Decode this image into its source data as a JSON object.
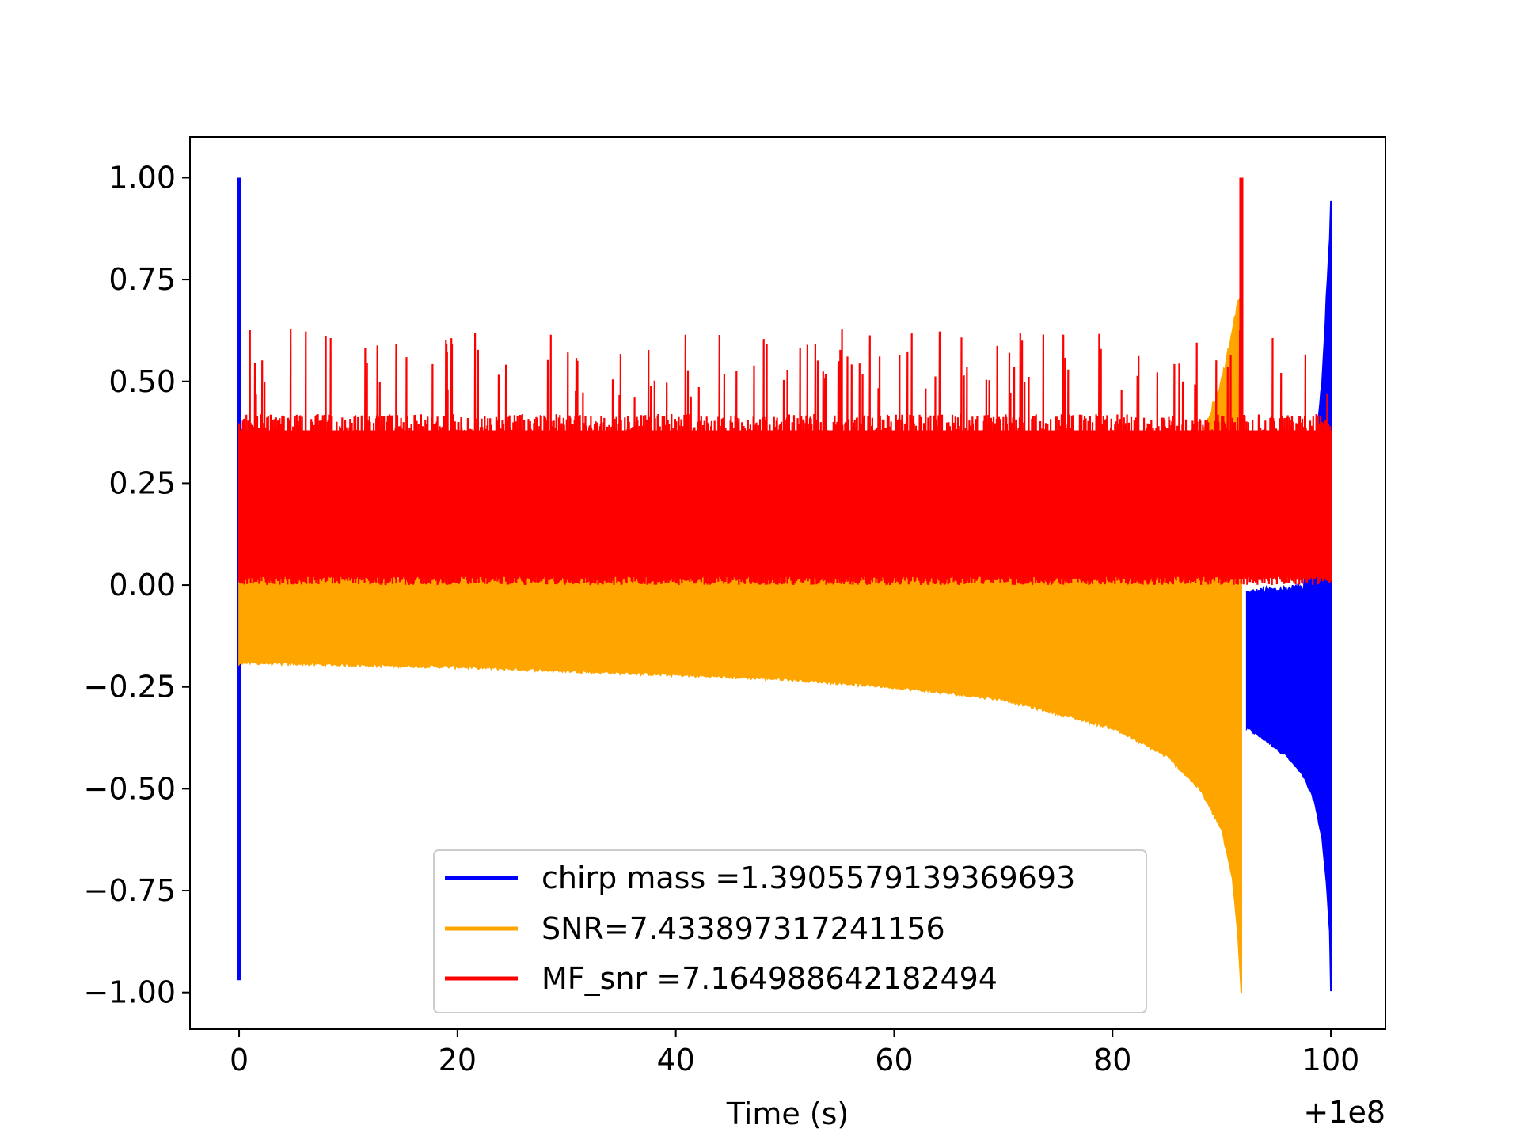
{
  "chart_data": {
    "type": "line",
    "title": "",
    "xlabel": "Time (s)",
    "ylabel": "",
    "x_offset_label": "+1e8",
    "xlim": [
      -4.5,
      105
    ],
    "ylim": [
      -1.09,
      1.1
    ],
    "xticks": [
      0,
      20,
      40,
      60,
      80,
      100
    ],
    "xtick_labels": [
      "0",
      "20",
      "40",
      "60",
      "80",
      "100"
    ],
    "yticks": [
      1.0,
      0.75,
      0.5,
      0.25,
      0.0,
      -0.25,
      -0.5,
      -0.75,
      -1.0
    ],
    "ytick_labels": [
      "1.00",
      "0.75",
      "0.50",
      "0.25",
      "0.00",
      "−0.25",
      "−0.50",
      "−0.75",
      "−1.00"
    ],
    "grid": false,
    "legend_position": "lower-center",
    "series": [
      {
        "name": "chirp mass =1.3905579139369693",
        "color": "#0000ff",
        "spike": {
          "x": 0,
          "ymax": 1.0,
          "ymin": -0.97
        },
        "x": [
          92.3,
          94,
          96,
          97.5,
          98.5,
          99.2,
          99.6,
          99.9,
          100.0
        ],
        "upper": [
          -0.02,
          -0.015,
          -0.01,
          -0.005,
          0.3,
          0.5,
          0.7,
          0.85,
          0.95
        ],
        "lower": [
          -0.35,
          -0.38,
          -0.42,
          -0.47,
          -0.53,
          -0.62,
          -0.73,
          -0.85,
          -1.0
        ]
      },
      {
        "name": "SNR=7.433897317241156",
        "color": "#ffa500",
        "x": [
          0,
          10,
          20,
          30,
          40,
          50,
          60,
          70,
          80,
          85,
          88,
          90,
          91,
          91.5,
          91.8
        ],
        "upper": [
          0.02,
          0.02,
          0.02,
          0.02,
          0.03,
          0.03,
          0.03,
          0.05,
          0.1,
          0.2,
          0.35,
          0.5,
          0.62,
          0.7,
          0.72
        ],
        "lower": [
          -0.19,
          -0.195,
          -0.2,
          -0.21,
          -0.22,
          -0.23,
          -0.25,
          -0.28,
          -0.35,
          -0.42,
          -0.5,
          -0.6,
          -0.72,
          -0.86,
          -1.0
        ]
      },
      {
        "name": "MF_snr =7.164988642182494",
        "color": "#ff0000",
        "band_lower": 0.0,
        "band_upper": 0.42,
        "peak": {
          "x": 91.8,
          "y": 1.0
        },
        "x_range": [
          0,
          100
        ]
      }
    ]
  }
}
